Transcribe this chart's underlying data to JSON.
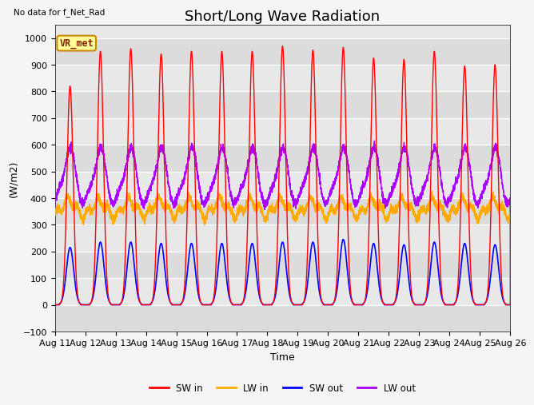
{
  "title": "Short/Long Wave Radiation",
  "xlabel": "Time",
  "ylabel": "(W/m2)",
  "ylim": [
    -100,
    1050
  ],
  "xlim": [
    0,
    15
  ],
  "no_data_text": "No data for f_Net_Rad",
  "legend_label": "VR_met",
  "x_tick_labels": [
    "Aug 11",
    "Aug 12",
    "Aug 13",
    "Aug 14",
    "Aug 15",
    "Aug 16",
    "Aug 17",
    "Aug 18",
    "Aug 19",
    "Aug 20",
    "Aug 21",
    "Aug 22",
    "Aug 23",
    "Aug 24",
    "Aug 25",
    "Aug 26"
  ],
  "colors": {
    "SW_in": "#ff0000",
    "LW_in": "#ffaa00",
    "SW_out": "#0000ff",
    "LW_out": "#aa00ff"
  },
  "background_color": "#e8e8e8",
  "plot_bg_color": "#f0f0f0",
  "n_days": 15,
  "sw_in_peaks": [
    820,
    950,
    960,
    940,
    950,
    950,
    950,
    970,
    955,
    965,
    925,
    920,
    950,
    895,
    900
  ],
  "sw_out_peaks": [
    215,
    235,
    235,
    230,
    230,
    230,
    230,
    235,
    235,
    245,
    230,
    225,
    235,
    230,
    225
  ],
  "lw_in_base": 330,
  "lw_in_day_bump": 60,
  "lw_out_night": 390,
  "lw_out_day_peak": 590,
  "grid_color": "#ffffff",
  "stripe_color_1": "#e8e8e8",
  "stripe_color_2": "#d8d8d8",
  "title_fontsize": 13,
  "label_fontsize": 9,
  "tick_fontsize": 8
}
